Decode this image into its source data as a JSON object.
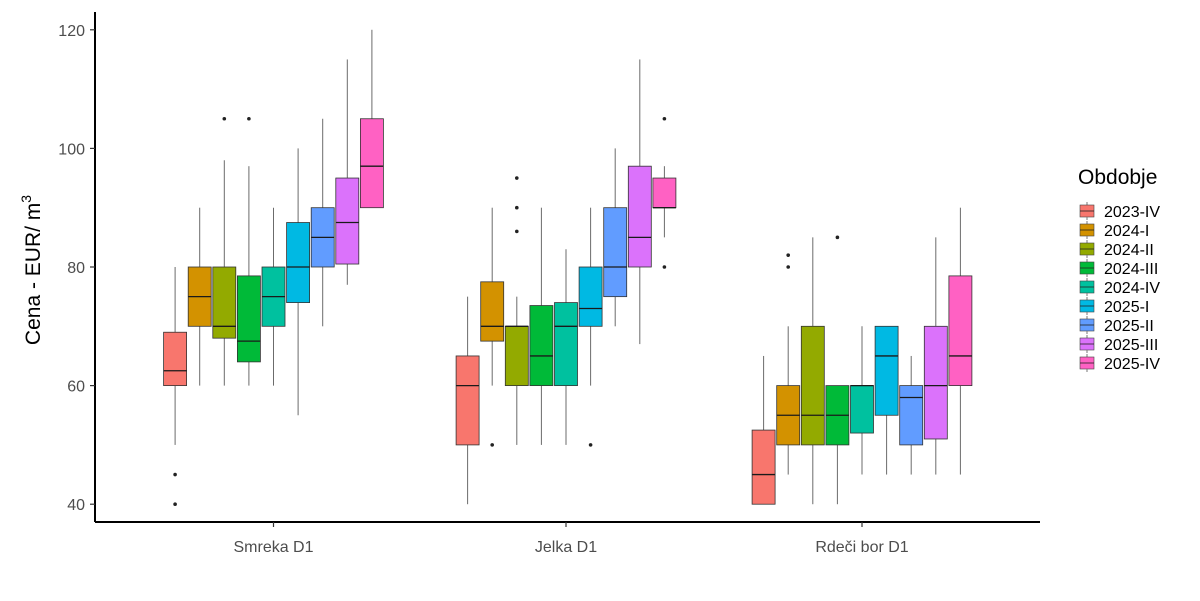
{
  "chart_data": {
    "type": "boxplot",
    "title": "",
    "xlabel": "",
    "ylabel": "Cena - EUR/ m",
    "ylabel_superscript": "3",
    "ylim": [
      37,
      123
    ],
    "yticks": [
      40,
      60,
      80,
      100,
      120
    ],
    "categories": [
      "Smreka D1",
      "Jelka D1",
      "Rdeči bor D1"
    ],
    "legend": {
      "title": "Obdobje",
      "position": "right"
    },
    "series": [
      {
        "name": "2023-IV",
        "color": "#F8766D",
        "boxes": [
          {
            "min": 50,
            "q1": 60,
            "median": 62.5,
            "q3": 69,
            "max": 80,
            "outliers": [
              45,
              40
            ]
          },
          {
            "min": 40,
            "q1": 50,
            "median": 60,
            "q3": 65,
            "max": 75,
            "outliers": []
          },
          {
            "min": 40,
            "q1": 40,
            "median": 45,
            "q3": 52.5,
            "max": 65,
            "outliers": []
          }
        ]
      },
      {
        "name": "2024-I",
        "color": "#D39200",
        "boxes": [
          {
            "min": 60,
            "q1": 70,
            "median": 75,
            "q3": 80,
            "max": 90,
            "outliers": []
          },
          {
            "min": 60,
            "q1": 67.5,
            "median": 70,
            "q3": 77.5,
            "max": 90,
            "outliers": [
              50
            ]
          },
          {
            "min": 45,
            "q1": 50,
            "median": 55,
            "q3": 60,
            "max": 70,
            "outliers": [
              82,
              80
            ]
          }
        ]
      },
      {
        "name": "2024-II",
        "color": "#93AA00",
        "boxes": [
          {
            "min": 60,
            "q1": 68,
            "median": 70,
            "q3": 80,
            "max": 98,
            "outliers": [
              105
            ]
          },
          {
            "min": 50,
            "q1": 60,
            "median": 70,
            "q3": 70,
            "max": 75,
            "outliers": [
              95,
              90,
              86
            ]
          },
          {
            "min": 40,
            "q1": 50,
            "median": 55,
            "q3": 70,
            "max": 85,
            "outliers": []
          }
        ]
      },
      {
        "name": "2024-III",
        "color": "#00BA38",
        "boxes": [
          {
            "min": 60,
            "q1": 64,
            "median": 67.5,
            "q3": 78.5,
            "max": 97,
            "outliers": [
              105
            ]
          },
          {
            "min": 50,
            "q1": 60,
            "median": 65,
            "q3": 73.5,
            "max": 90,
            "outliers": []
          },
          {
            "min": 40,
            "q1": 50,
            "median": 55,
            "q3": 60,
            "max": 60,
            "outliers": [
              85
            ]
          }
        ]
      },
      {
        "name": "2024-IV",
        "color": "#00C19F",
        "boxes": [
          {
            "min": 60,
            "q1": 70,
            "median": 75,
            "q3": 80,
            "max": 90,
            "outliers": []
          },
          {
            "min": 50,
            "q1": 60,
            "median": 70,
            "q3": 74,
            "max": 83,
            "outliers": []
          },
          {
            "min": 45,
            "q1": 52,
            "median": 60,
            "q3": 60,
            "max": 70,
            "outliers": []
          }
        ]
      },
      {
        "name": "2025-I",
        "color": "#00B9E3",
        "boxes": [
          {
            "min": 55,
            "q1": 74,
            "median": 80,
            "q3": 87.5,
            "max": 100,
            "outliers": []
          },
          {
            "min": 60,
            "q1": 70,
            "median": 73,
            "q3": 80,
            "max": 90,
            "outliers": [
              50
            ]
          },
          {
            "min": 45,
            "q1": 55,
            "median": 65,
            "q3": 70,
            "max": 70,
            "outliers": []
          }
        ]
      },
      {
        "name": "2025-II",
        "color": "#619CFF",
        "boxes": [
          {
            "min": 70,
            "q1": 80,
            "median": 85,
            "q3": 90,
            "max": 105,
            "outliers": []
          },
          {
            "min": 70,
            "q1": 75,
            "median": 80,
            "q3": 90,
            "max": 100,
            "outliers": []
          },
          {
            "min": 45,
            "q1": 50,
            "median": 58,
            "q3": 60,
            "max": 65,
            "outliers": []
          }
        ]
      },
      {
        "name": "2025-III",
        "color": "#DB72FB",
        "boxes": [
          {
            "min": 77,
            "q1": 80.5,
            "median": 87.5,
            "q3": 95,
            "max": 115,
            "outliers": []
          },
          {
            "min": 67,
            "q1": 80,
            "median": 85,
            "q3": 97,
            "max": 115,
            "outliers": []
          },
          {
            "min": 45,
            "q1": 51,
            "median": 60,
            "q3": 70,
            "max": 85,
            "outliers": []
          }
        ]
      },
      {
        "name": "2025-IV",
        "color": "#FF61C3",
        "boxes": [
          {
            "min": 90,
            "q1": 90,
            "median": 97,
            "q3": 105,
            "max": 120,
            "outliers": []
          },
          {
            "min": 85,
            "q1": 90,
            "median": 90,
            "q3": 95,
            "max": 97,
            "outliers": [
              105,
              80
            ]
          },
          {
            "min": 45,
            "q1": 60,
            "median": 65,
            "q3": 78.5,
            "max": 90,
            "outliers": []
          }
        ]
      }
    ]
  }
}
